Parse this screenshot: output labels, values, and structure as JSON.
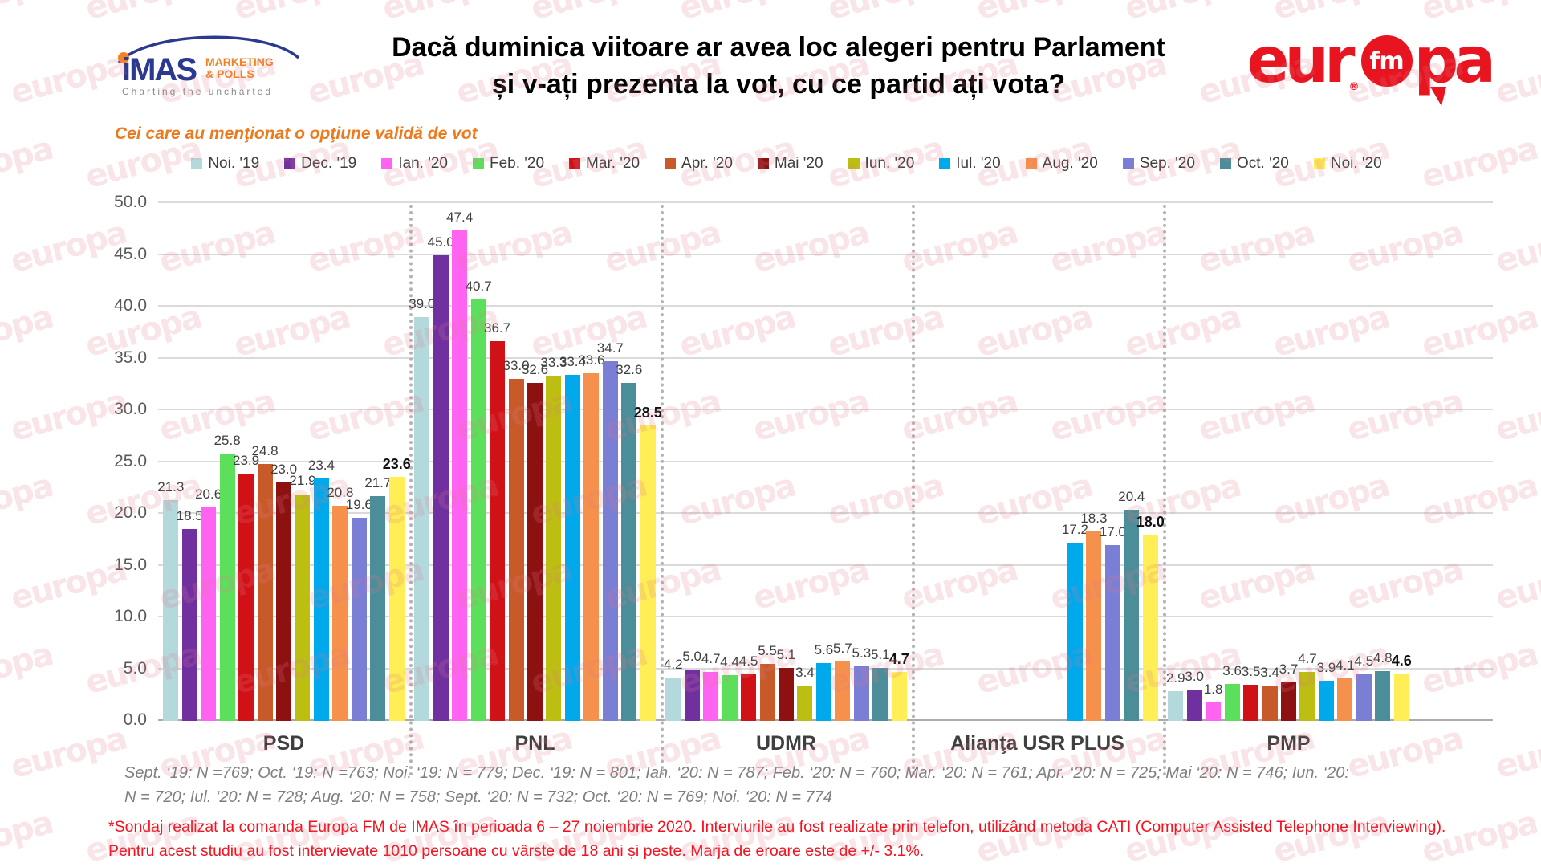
{
  "header": {
    "imas": {
      "name": "iMAS",
      "sub1": "MARKETING",
      "sub2": "& POLLS",
      "tagline": "Charting the uncharted"
    },
    "title_line1": "Dacă duminica viitoare ar avea loc alegeri pentru Parlament",
    "title_line2": "și v-ați prezenta la vot, cu ce partid ați vota?",
    "europafm": {
      "part1": "eur",
      "fm": "fm",
      "part2": "pa",
      "reg": "®"
    }
  },
  "subtitle": "Cei care au menţionat o opţiune validă de vot",
  "watermark_text": "europa",
  "chart_data": {
    "type": "bar",
    "title": "Dacă duminica viitoare ar avea loc alegeri pentru Parlament și v-ați prezenta la vot, cu ce partid ați vota?",
    "ylim": [
      0,
      50
    ],
    "ytick_step": 5,
    "grid": true,
    "legend_position": "top",
    "categories": [
      "PSD",
      "PNL",
      "UDMR",
      "Alianţa USR PLUS",
      "PMP"
    ],
    "series": [
      {
        "name": "Noi. '19",
        "color": "#b3d9dd",
        "values": [
          21.3,
          39.0,
          4.2,
          null,
          2.9
        ]
      },
      {
        "name": "Dec. '19",
        "color": "#7030a0",
        "values": [
          18.5,
          45.0,
          5.0,
          null,
          3.0
        ]
      },
      {
        "name": "Ian. '20",
        "color": "#ff63f2",
        "values": [
          20.6,
          47.4,
          4.7,
          null,
          1.8
        ]
      },
      {
        "name": "Feb. '20",
        "color": "#5ce05c",
        "values": [
          25.8,
          40.7,
          4.4,
          null,
          3.6
        ]
      },
      {
        "name": "Mar. '20",
        "color": "#d01217",
        "values": [
          23.9,
          36.7,
          4.5,
          null,
          3.5
        ]
      },
      {
        "name": "Apr. '20",
        "color": "#c85a2a",
        "values": [
          24.8,
          33.0,
          5.5,
          null,
          3.4
        ]
      },
      {
        "name": "Mai '20",
        "color": "#8e1111",
        "values": [
          23.0,
          32.6,
          5.1,
          null,
          3.7
        ]
      },
      {
        "name": "Iun. '20",
        "color": "#bcbe12",
        "values": [
          21.9,
          33.3,
          3.4,
          null,
          4.7
        ]
      },
      {
        "name": "Iul. '20",
        "color": "#00a8ec",
        "values": [
          23.4,
          33.4,
          5.6,
          17.2,
          3.9
        ]
      },
      {
        "name": "Aug. '20",
        "color": "#f6914d",
        "values": [
          20.8,
          33.6,
          5.7,
          18.3,
          4.1
        ]
      },
      {
        "name": "Sep. '20",
        "color": "#7a7fd5",
        "values": [
          19.6,
          34.7,
          5.3,
          17.0,
          4.5
        ]
      },
      {
        "name": "Oct. '20",
        "color": "#4b8e99",
        "values": [
          21.7,
          32.6,
          5.1,
          20.4,
          4.8
        ]
      },
      {
        "name": "Noi. '20",
        "color": "#ffee55",
        "values": [
          23.6,
          28.5,
          4.7,
          18.0,
          4.6
        ],
        "bold": true
      }
    ]
  },
  "footnotes": {
    "samples_line1": "Sept. ‘19: N =769; Oct. ‘19: N =763; Noi. ‘19: N = 779; Dec. ‘19: N = 801; Ian. ‘20: N = 787; Feb. ‘20: N = 760; Mar. ‘20: N = 761; Apr. ‘20: N = 725; Mai ‘20: N = 746; Iun. ‘20:",
    "samples_line2": "N = 720; Iul. ‘20: N = 728; Aug. ‘20: N = 758; Sept. ‘20: N = 732; Oct. ‘20: N = 769; Noi. ‘20: N = 774",
    "survey_line1": "*Sondaj realizat la comanda Europa FM de IMAS în perioada  6 – 27 noiembrie 2020. Interviurile au fost realizate prin telefon, utilizând metoda CATI (Computer Assisted Telephone Interviewing).",
    "survey_line2": "Pentru acest studiu au fost intervievate 1010 persoane cu vârste de 18 ani și peste. Marja de eroare este de +/- 3.1%."
  }
}
